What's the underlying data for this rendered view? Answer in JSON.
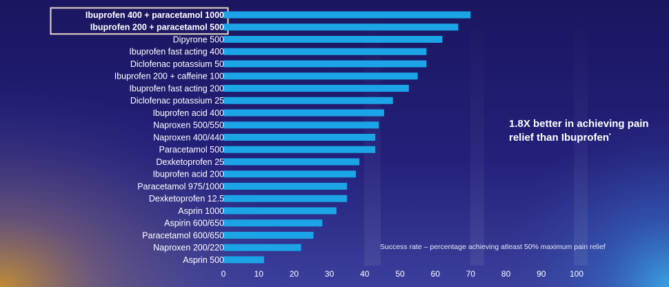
{
  "colors": {
    "bar": "#1ba4e6",
    "background_top": "#1c1865",
    "background_bottom": "#3a3f9a",
    "highlight_border": "#e8d9c6"
  },
  "callout": {
    "text": "1.8X better in achieving pain relief than Ibuprofen",
    "footnote_mark": "*"
  },
  "footnote": "Success rate – percentage achieving atleast 50% maximum pain relief",
  "chart_data": {
    "type": "bar",
    "orientation": "horizontal",
    "title": "",
    "xlabel": "",
    "ylabel": "",
    "xlim": [
      0,
      100
    ],
    "x_ticks": [
      0,
      10,
      20,
      30,
      40,
      50,
      60,
      70,
      80,
      90,
      100
    ],
    "grid": false,
    "highlighted_categories": [
      "Ibuprofen 400 + paracetamol 1000",
      "Ibuprofen 200 + paracetamol 500"
    ],
    "categories": [
      "Ibuprofen 400 + paracetamol 1000",
      "Ibuprofen 200 + paracetamol 500",
      "Dipyrone 500",
      "Ibuprofen fast acting 400",
      "Diclofenac potassium 50",
      "Ibuprofen 200 + caffeine 100",
      "Ibuprofen fast acting 200",
      "Diclofenac potassium 25",
      "Ibuprofen acid 400",
      "Naproxen 500/550",
      "Naproxen 400/440",
      "Paracetamol 500",
      "Dexketoprofen 25",
      "Ibuprofen acid 200",
      "Paracetamol 975/1000",
      "Dexketoprofen 12.5",
      "Asprin 1000",
      "Aspirin 600/650",
      "Paracetamol 600/650",
      "Naproxen 200/220",
      "Asprin 500"
    ],
    "values": [
      70,
      66.5,
      62,
      57.5,
      57.5,
      55,
      52.5,
      48,
      45.5,
      44,
      43,
      43,
      38.5,
      37.5,
      35,
      35,
      32,
      28,
      25.5,
      22,
      11.5
    ]
  }
}
